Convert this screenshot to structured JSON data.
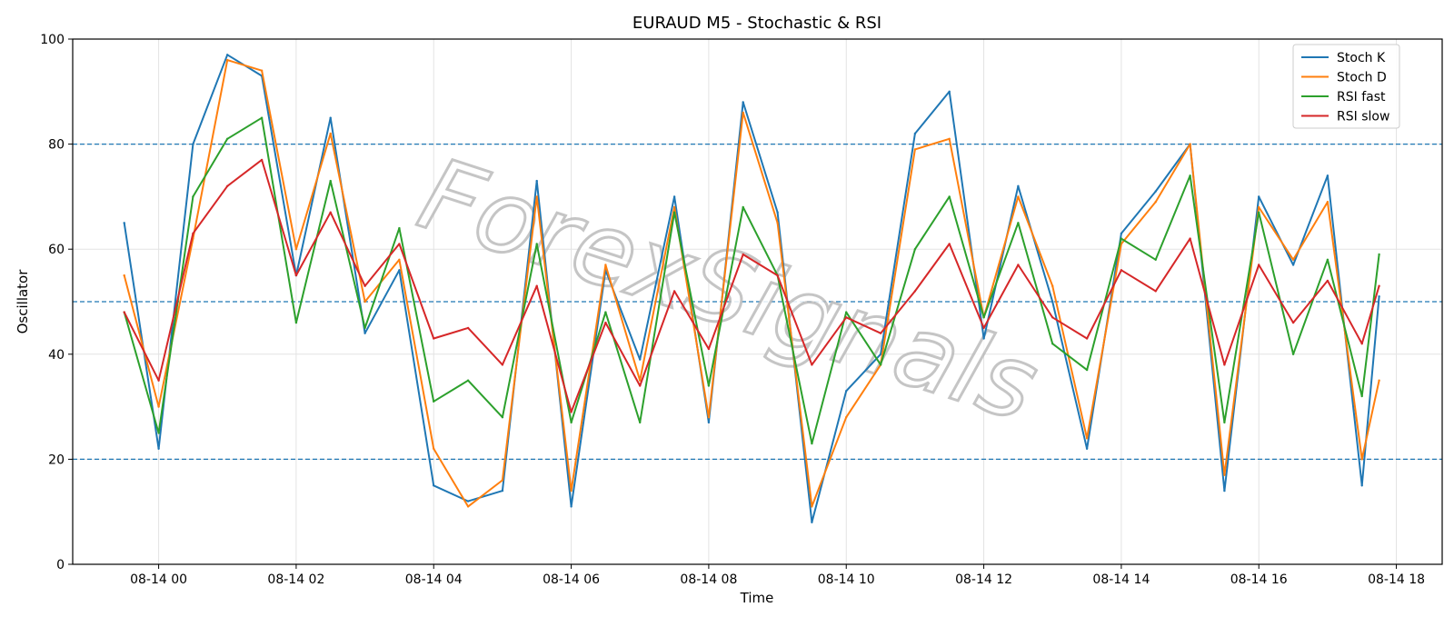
{
  "chart_data": {
    "type": "line",
    "title": "EURAUD M5 - Stochastic & RSI",
    "xlabel": "Time",
    "ylabel": "Oscillator",
    "ylim": [
      0,
      100
    ],
    "yticks": [
      0,
      20,
      40,
      60,
      80,
      100
    ],
    "xlim": [
      "08-13 22:45",
      "08-14 18:40"
    ],
    "xticks": [
      "08-14 00",
      "08-14 02",
      "08-14 04",
      "08-14 06",
      "08-14 08",
      "08-14 10",
      "08-14 12",
      "08-14 14",
      "08-14 16",
      "08-14 18"
    ],
    "hlines": [
      80,
      50,
      20
    ],
    "grid": true,
    "legend_position": "top-right",
    "watermark": "ForexSignals",
    "colors": {
      "stoch_k": "#1f77b4",
      "stoch_d": "#ff7f0e",
      "rsi_fast": "#2ca02c",
      "rsi_slow": "#d62728",
      "hline": "#1f77b4"
    },
    "x": [
      "23:30",
      "00:00",
      "00:30",
      "01:00",
      "01:30",
      "02:00",
      "02:30",
      "03:00",
      "03:30",
      "04:00",
      "04:30",
      "05:00",
      "05:30",
      "06:00",
      "06:30",
      "07:00",
      "07:30",
      "08:00",
      "08:30",
      "09:00",
      "09:30",
      "10:00",
      "10:30",
      "11:00",
      "11:30",
      "12:00",
      "12:30",
      "13:00",
      "13:30",
      "14:00",
      "14:30",
      "15:00",
      "15:30",
      "16:00",
      "16:30",
      "17:00",
      "17:30",
      "17:45"
    ],
    "series": [
      {
        "key": "stoch_k",
        "name": "Stoch K",
        "values": [
          65,
          22,
          80,
          97,
          93,
          55,
          85,
          44,
          56,
          15,
          12,
          14,
          73,
          11,
          56,
          39,
          70,
          27,
          88,
          67,
          8,
          33,
          40,
          82,
          90,
          43,
          72,
          50,
          22,
          63,
          71,
          80,
          14,
          70,
          57,
          74,
          15,
          51
        ]
      },
      {
        "key": "stoch_d",
        "name": "Stoch D",
        "values": [
          55,
          30,
          62,
          96,
          94,
          60,
          82,
          50,
          58,
          22,
          11,
          16,
          70,
          14,
          57,
          35,
          68,
          28,
          86,
          65,
          11,
          28,
          38,
          79,
          81,
          47,
          70,
          53,
          24,
          61,
          69,
          80,
          17,
          68,
          58,
          69,
          20,
          35
        ]
      },
      {
        "key": "rsi_fast",
        "name": "RSI fast",
        "values": [
          48,
          25,
          70,
          81,
          85,
          46,
          73,
          45,
          64,
          31,
          35,
          28,
          61,
          27,
          48,
          27,
          67,
          34,
          68,
          55,
          23,
          48,
          38,
          60,
          70,
          47,
          65,
          42,
          37,
          62,
          58,
          74,
          27,
          67,
          40,
          58,
          32,
          59
        ]
      },
      {
        "key": "rsi_slow",
        "name": "RSI slow",
        "values": [
          48,
          35,
          63,
          72,
          77,
          55,
          67,
          53,
          61,
          43,
          45,
          38,
          53,
          29,
          46,
          34,
          52,
          41,
          59,
          55,
          38,
          47,
          44,
          52,
          61,
          45,
          57,
          47,
          43,
          56,
          52,
          62,
          38,
          57,
          46,
          54,
          42,
          53
        ]
      }
    ]
  }
}
